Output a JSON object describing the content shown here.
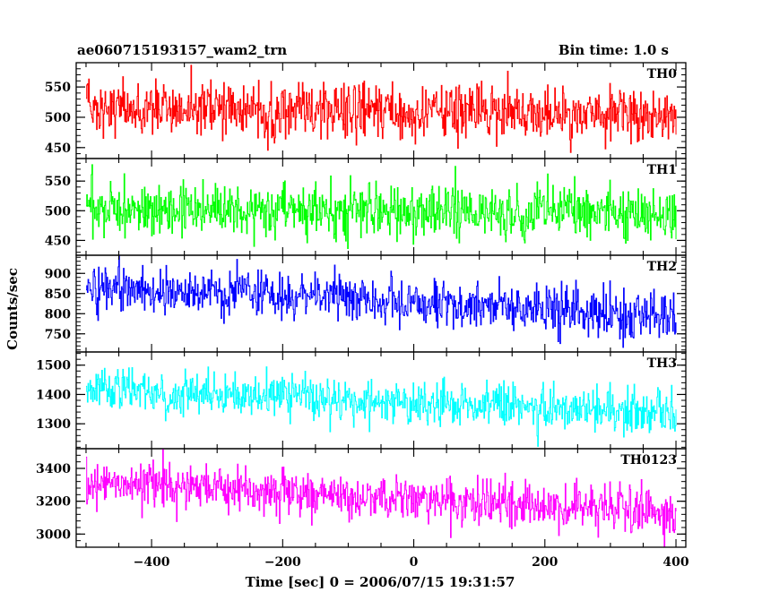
{
  "header": {
    "left_title": "ae060715193157_wam2_trn",
    "right_title": "Bin time: 1.0 s"
  },
  "chart_data": {
    "type": "line",
    "xlabel": "Time [sec] 0 = 2006/07/15 19:31:57",
    "ylabel": "Counts/sec",
    "xlim": [
      -515,
      415
    ],
    "x_ticks": [
      -400,
      -200,
      0,
      200,
      400
    ],
    "x_range_data": [
      -500,
      400
    ],
    "bin_time_s": 1.0,
    "grid": false,
    "panels": [
      {
        "name": "TH0",
        "color": "#ff0000",
        "ylim": [
          432,
          590
        ],
        "y_ticks": [
          450,
          500,
          550
        ],
        "approx_mean_start": 520,
        "approx_mean_end": 500,
        "approx_noise": 22
      },
      {
        "name": "TH1",
        "color": "#00ff00",
        "ylim": [
          425,
          588
        ],
        "y_ticks": [
          450,
          500,
          550
        ],
        "approx_mean_start": 505,
        "approx_mean_end": 495,
        "approx_noise": 22
      },
      {
        "name": "TH2",
        "color": "#0000ff",
        "ylim": [
          705,
          945
        ],
        "y_ticks": [
          750,
          800,
          850,
          900
        ],
        "approx_mean_start": 865,
        "approx_mean_end": 795,
        "approx_noise": 30
      },
      {
        "name": "TH3",
        "color": "#00ffff",
        "ylim": [
          1215,
          1545
        ],
        "y_ticks": [
          1300,
          1400,
          1500
        ],
        "approx_mean_start": 1420,
        "approx_mean_end": 1335,
        "approx_noise": 37
      },
      {
        "name": "TH0123",
        "color": "#ff00ff",
        "ylim": [
          2920,
          3520
        ],
        "y_ticks": [
          3000,
          3200,
          3400
        ],
        "approx_mean_start": 3330,
        "approx_mean_end": 3120,
        "approx_noise": 70
      }
    ]
  }
}
